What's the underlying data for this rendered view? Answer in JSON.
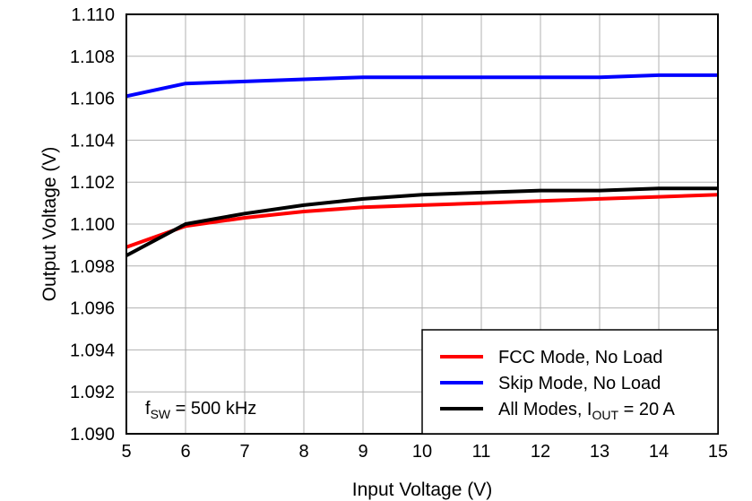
{
  "chart_data": {
    "type": "line",
    "xlabel": "Input Voltage (V)",
    "ylabel": "Output Voltage (V)",
    "xlim": [
      5,
      15
    ],
    "ylim": [
      1.09,
      1.11
    ],
    "x_ticks": [
      "5",
      "6",
      "7",
      "8",
      "9",
      "10",
      "11",
      "12",
      "13",
      "14",
      "15"
    ],
    "y_ticks": [
      "1.090",
      "1.092",
      "1.094",
      "1.096",
      "1.098",
      "1.100",
      "1.102",
      "1.104",
      "1.106",
      "1.108",
      "1.110"
    ],
    "grid": true,
    "legend_position": "bottom-right",
    "annotation": {
      "main": "f",
      "sub": "SW",
      "rest": " = 500 kHz"
    },
    "series": [
      {
        "name": "FCC Mode, No Load",
        "legend": {
          "main": "FCC Mode, No Load",
          "sub": "",
          "rest": ""
        },
        "color": "#ff0000",
        "x": [
          5,
          6,
          7,
          8,
          9,
          10,
          11,
          12,
          13,
          14,
          15
        ],
        "y": [
          1.0989,
          1.0999,
          1.1003,
          1.1006,
          1.1008,
          1.1009,
          1.101,
          1.1011,
          1.1012,
          1.1013,
          1.1014
        ]
      },
      {
        "name": "Skip Mode, No Load",
        "legend": {
          "main": "Skip Mode, No Load",
          "sub": "",
          "rest": ""
        },
        "color": "#0000ff",
        "x": [
          5,
          6,
          7,
          8,
          9,
          10,
          11,
          12,
          13,
          14,
          15
        ],
        "y": [
          1.1061,
          1.1067,
          1.1068,
          1.1069,
          1.107,
          1.107,
          1.107,
          1.107,
          1.107,
          1.1071,
          1.1071
        ]
      },
      {
        "name": "All Modes, IOUT = 20 A",
        "legend": {
          "main": "All Modes, I",
          "sub": "OUT",
          "rest": " = 20 A"
        },
        "color": "#000000",
        "x": [
          5,
          6,
          7,
          8,
          9,
          10,
          11,
          12,
          13,
          14,
          15
        ],
        "y": [
          1.0985,
          1.1,
          1.1005,
          1.1009,
          1.1012,
          1.1014,
          1.1015,
          1.1016,
          1.1016,
          1.1017,
          1.1017
        ]
      }
    ]
  }
}
